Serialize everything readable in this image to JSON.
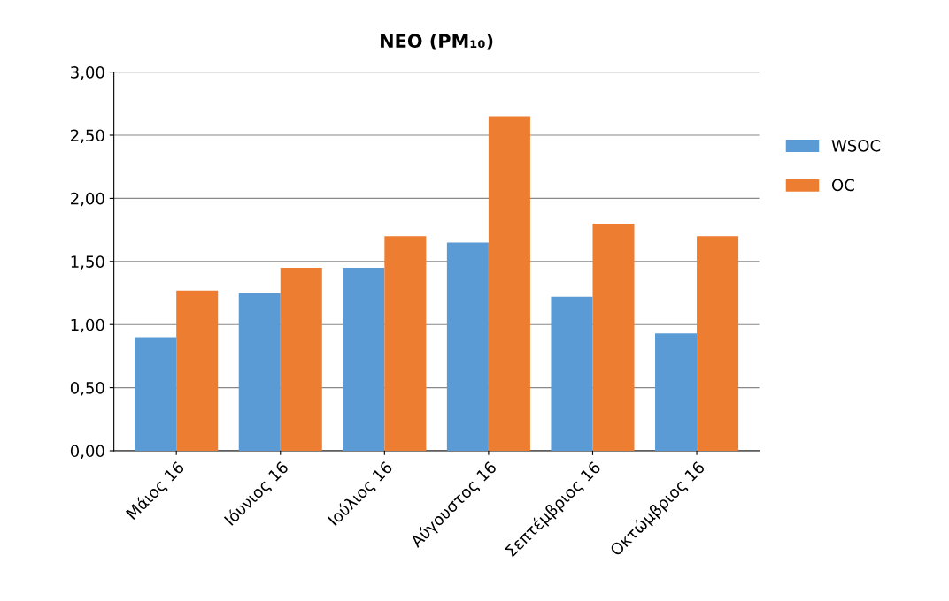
{
  "chart_data": {
    "type": "bar",
    "title": "NEO (PM₁₀)",
    "categories": [
      "Μάιος 16",
      "Ιόυνιος 16",
      "Ιούλιος 16",
      "Αύγουστος 16",
      "Σεπτέμβριος 16",
      "Οκτώμβριος 16"
    ],
    "series": [
      {
        "name": "WSOC",
        "color": "#5b9bd5",
        "values": [
          0.9,
          1.25,
          1.45,
          1.65,
          1.22,
          0.93
        ]
      },
      {
        "name": "OC",
        "color": "#ed7d31",
        "values": [
          1.27,
          1.45,
          1.7,
          2.65,
          1.8,
          1.7
        ]
      }
    ],
    "ylim": [
      0,
      3
    ],
    "yticks": [
      {
        "value": 0,
        "label": "0,00"
      },
      {
        "value": 0.5,
        "label": "0,50"
      },
      {
        "value": 1,
        "label": "1,00"
      },
      {
        "value": 1.5,
        "label": "1,50"
      },
      {
        "value": 2,
        "label": "2,00"
      },
      {
        "value": 2.5,
        "label": "2,50"
      },
      {
        "value": 3,
        "label": "3,00"
      }
    ],
    "grid": "y",
    "legend": "right"
  }
}
